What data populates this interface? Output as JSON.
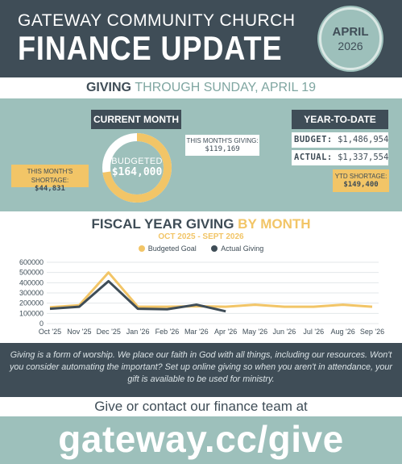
{
  "header": {
    "church_name": "GATEWAY COMMUNITY CHURCH",
    "title": "FINANCE UPDATE",
    "month": "APRIL",
    "year": "2026"
  },
  "giving_band": {
    "strong": "GIVING",
    "light": "THROUGH SUNDAY, APRIL 19"
  },
  "current_month": {
    "heading": "CURRENT MONTH",
    "budgeted_label": "BUDGETED",
    "budgeted_value": "$164,000",
    "giving_label": "THIS MONTH'S GIVING:",
    "giving_value": "$119,169",
    "shortage_label": "THIS MONTH'S SHORTAGE:",
    "shortage_value": "$44,831",
    "progress_fraction": 0.727
  },
  "ytd": {
    "heading": "YEAR-TO-DATE",
    "budget_label": "BUDGET:",
    "budget_value": "$1,486,954",
    "actual_label": "ACTUAL:",
    "actual_value": "$1,337,554",
    "shortage_label": "YTD SHORTAGE:",
    "shortage_value": "$149,400"
  },
  "colors": {
    "dark": "#3f4d57",
    "teal": "#9dc0bb",
    "gold": "#f2c567"
  },
  "chart_data": {
    "type": "line",
    "title_a": "FISCAL YEAR GIVING",
    "title_b": "BY MONTH",
    "subtitle": "OCT 2025 - SEPT 2026",
    "categories": [
      "Oct '25",
      "Nov '25",
      "Dec '25",
      "Jan '26",
      "Feb '26",
      "Mar '26",
      "Apr '26",
      "May '26",
      "Jun '26",
      "Jul '26",
      "Aug '26",
      "Sep '26"
    ],
    "series": [
      {
        "name": "Budgeted Goal",
        "color": "#f2c567",
        "values": [
          160000,
          180000,
          500000,
          165000,
          165000,
          170000,
          165000,
          185000,
          165000,
          165000,
          185000,
          165000
        ]
      },
      {
        "name": "Actual Giving",
        "color": "#3f4d57",
        "values": [
          145000,
          165000,
          415000,
          145000,
          140000,
          185000,
          120000,
          null,
          null,
          null,
          null,
          null
        ]
      }
    ],
    "yticks": [
      "0",
      "100000",
      "200000",
      "300000",
      "400000",
      "500000",
      "600000"
    ],
    "ylim": [
      0,
      600000
    ],
    "grid": true,
    "legend": "top-center"
  },
  "footer": {
    "quote": "Giving is a form of worship. We place our faith in God with all things, including our resources. Won't you consider automating the important? Set up online giving so when you aren't in attendance, your gift is available to be used for ministry.",
    "contact": "Give or contact our finance team at",
    "url": "gateway.cc/give"
  }
}
